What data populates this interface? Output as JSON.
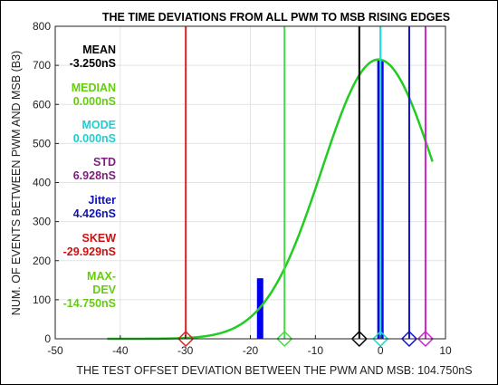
{
  "chart_data": {
    "type": "histogram",
    "title": "THE TIME DEVIATIONS FROM ALL PWM TO MSB RISING EDGES",
    "xlabel": "THE TEST OFFSET DEVIATION BETWEEN THE PWM AND MSB: 104.750nS",
    "ylabel": "NUM. OF EVENTS BETWEEN PWM AND MSB (B3)",
    "xlim": [
      -50,
      10
    ],
    "ylim": [
      0,
      800
    ],
    "xticks": [
      "-50",
      "-40",
      "-30",
      "-20",
      "-10",
      "0",
      "10"
    ],
    "yticks": [
      "0",
      "100",
      "200",
      "300",
      "400",
      "500",
      "600",
      "700",
      "800"
    ],
    "grid": true,
    "bars": [
      {
        "x": -18.5,
        "value": 155,
        "color": "#0000ee"
      },
      {
        "x": 0,
        "value": 715,
        "color": "#0000ee"
      }
    ],
    "fit_curve": {
      "name": "normal fit",
      "color": "#22cc22",
      "peak": 715,
      "mu": -0.3,
      "sigma": 8.7,
      "x_range": [
        -42,
        8
      ]
    },
    "markers": [
      {
        "name": "skew",
        "x": -29.929,
        "color": "#dd2222"
      },
      {
        "name": "max-dev",
        "x": -14.75,
        "color": "#44dd44"
      },
      {
        "name": "mean",
        "x": -3.25,
        "color": "#000000"
      },
      {
        "name": "median",
        "x": 0,
        "color": "#44dd44"
      },
      {
        "name": "mode",
        "x": 0,
        "color": "#22dddd"
      },
      {
        "name": "jitter",
        "x": 4.426,
        "color": "#1111cc"
      },
      {
        "name": "std",
        "x": 6.928,
        "color": "#cc22cc"
      }
    ],
    "stats": [
      {
        "id": "mean",
        "label": "MEAN",
        "value": "-3.250nS",
        "color": "#000000"
      },
      {
        "id": "median",
        "label": "MEDIAN",
        "value": "0.000nS",
        "color": "#66cc11"
      },
      {
        "id": "mode",
        "label": "MODE",
        "value": "0.000nS",
        "color": "#22cccc"
      },
      {
        "id": "std",
        "label": "STD",
        "value": "6.928nS",
        "color": "#7a1f7a"
      },
      {
        "id": "jitter",
        "label": "Jitter",
        "value": "4.426nS",
        "color": "#1111bb"
      },
      {
        "id": "skew",
        "label": "SKEW",
        "value": "-29.929nS",
        "color": "#cc1111"
      },
      {
        "id": "maxdev",
        "label": "MAX-\nDEV",
        "value": "-14.750nS",
        "color": "#66cc11"
      }
    ]
  }
}
